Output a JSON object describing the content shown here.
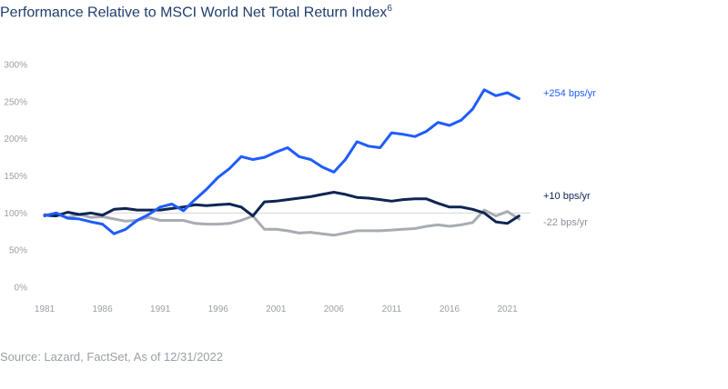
{
  "title": "Performance Relative to MSCI World Net Total Return Index",
  "title_sup": "6",
  "source": "Source: Lazard, FactSet, As of 12/31/2022",
  "chart_data": {
    "type": "line",
    "title": "Performance Relative to MSCI World Net Total Return Index",
    "xlabel": "",
    "ylabel": "",
    "xlim": [
      1981,
      2023
    ],
    "ylim": [
      0,
      300
    ],
    "x_ticks": [
      1981,
      1986,
      1991,
      1996,
      2001,
      2006,
      2011,
      2016,
      2021
    ],
    "y_ticks": [
      0,
      50,
      100,
      150,
      200,
      250,
      300
    ],
    "y_tick_labels": [
      "0%",
      "50%",
      "100%",
      "150%",
      "200%",
      "250%",
      "300%"
    ],
    "reference_line": 100,
    "grid": false,
    "series": [
      {
        "color": "#1f5cff",
        "end_label": "+254 bps/yr",
        "points": [
          [
            1981,
            96
          ],
          [
            1982,
            100
          ],
          [
            1983,
            93
          ],
          [
            1984,
            92
          ],
          [
            1985,
            88
          ],
          [
            1986,
            85
          ],
          [
            1987,
            72
          ],
          [
            1988,
            78
          ],
          [
            1989,
            90
          ],
          [
            1990,
            98
          ],
          [
            1991,
            108
          ],
          [
            1992,
            112
          ],
          [
            1993,
            103
          ],
          [
            1994,
            118
          ],
          [
            1995,
            132
          ],
          [
            1996,
            148
          ],
          [
            1997,
            160
          ],
          [
            1998,
            176
          ],
          [
            1999,
            172
          ],
          [
            2000,
            175
          ],
          [
            2001,
            182
          ],
          [
            2002,
            188
          ],
          [
            2003,
            176
          ],
          [
            2004,
            172
          ],
          [
            2005,
            162
          ],
          [
            2006,
            155
          ],
          [
            2007,
            172
          ],
          [
            2008,
            196
          ],
          [
            2009,
            190
          ],
          [
            2010,
            188
          ],
          [
            2011,
            208
          ],
          [
            2012,
            206
          ],
          [
            2013,
            203
          ],
          [
            2014,
            210
          ],
          [
            2015,
            222
          ],
          [
            2016,
            218
          ],
          [
            2017,
            225
          ],
          [
            2018,
            240
          ],
          [
            2019,
            266
          ],
          [
            2020,
            258
          ],
          [
            2021,
            262
          ],
          [
            2022,
            254
          ]
        ]
      },
      {
        "color": "#0f2553",
        "end_label": "+10 bps/yr",
        "points": [
          [
            1981,
            97
          ],
          [
            1982,
            96
          ],
          [
            1983,
            101
          ],
          [
            1984,
            98
          ],
          [
            1985,
            100
          ],
          [
            1986,
            97
          ],
          [
            1987,
            105
          ],
          [
            1988,
            106
          ],
          [
            1989,
            104
          ],
          [
            1990,
            104
          ],
          [
            1991,
            104
          ],
          [
            1992,
            106
          ],
          [
            1993,
            108
          ],
          [
            1994,
            111
          ],
          [
            1995,
            110
          ],
          [
            1996,
            111
          ],
          [
            1997,
            112
          ],
          [
            1998,
            108
          ],
          [
            1999,
            96
          ],
          [
            2000,
            115
          ],
          [
            2001,
            116
          ],
          [
            2002,
            118
          ],
          [
            2003,
            120
          ],
          [
            2004,
            122
          ],
          [
            2005,
            125
          ],
          [
            2006,
            128
          ],
          [
            2007,
            125
          ],
          [
            2008,
            121
          ],
          [
            2009,
            120
          ],
          [
            2010,
            118
          ],
          [
            2011,
            116
          ],
          [
            2012,
            118
          ],
          [
            2013,
            119
          ],
          [
            2014,
            119
          ],
          [
            2015,
            113
          ],
          [
            2016,
            108
          ],
          [
            2017,
            108
          ],
          [
            2018,
            105
          ],
          [
            2019,
            100
          ],
          [
            2020,
            88
          ],
          [
            2021,
            86
          ],
          [
            2022,
            96
          ]
        ]
      },
      {
        "color": "#a9acb3",
        "end_label": "-22 bps/yr",
        "points": [
          [
            1981,
            97
          ],
          [
            1982,
            98
          ],
          [
            1983,
            94
          ],
          [
            1984,
            98
          ],
          [
            1985,
            94
          ],
          [
            1986,
            95
          ],
          [
            1987,
            92
          ],
          [
            1988,
            89
          ],
          [
            1989,
            90
          ],
          [
            1990,
            94
          ],
          [
            1991,
            90
          ],
          [
            1992,
            90
          ],
          [
            1993,
            90
          ],
          [
            1994,
            86
          ],
          [
            1995,
            85
          ],
          [
            1996,
            85
          ],
          [
            1997,
            86
          ],
          [
            1998,
            90
          ],
          [
            1999,
            96
          ],
          [
            2000,
            78
          ],
          [
            2001,
            78
          ],
          [
            2002,
            76
          ],
          [
            2003,
            73
          ],
          [
            2004,
            74
          ],
          [
            2005,
            72
          ],
          [
            2006,
            70
          ],
          [
            2007,
            73
          ],
          [
            2008,
            76
          ],
          [
            2009,
            76
          ],
          [
            2010,
            76
          ],
          [
            2011,
            77
          ],
          [
            2012,
            78
          ],
          [
            2013,
            79
          ],
          [
            2014,
            82
          ],
          [
            2015,
            84
          ],
          [
            2016,
            82
          ],
          [
            2017,
            84
          ],
          [
            2018,
            87
          ],
          [
            2019,
            104
          ],
          [
            2020,
            96
          ],
          [
            2021,
            102
          ],
          [
            2022,
            92
          ]
        ]
      }
    ]
  }
}
